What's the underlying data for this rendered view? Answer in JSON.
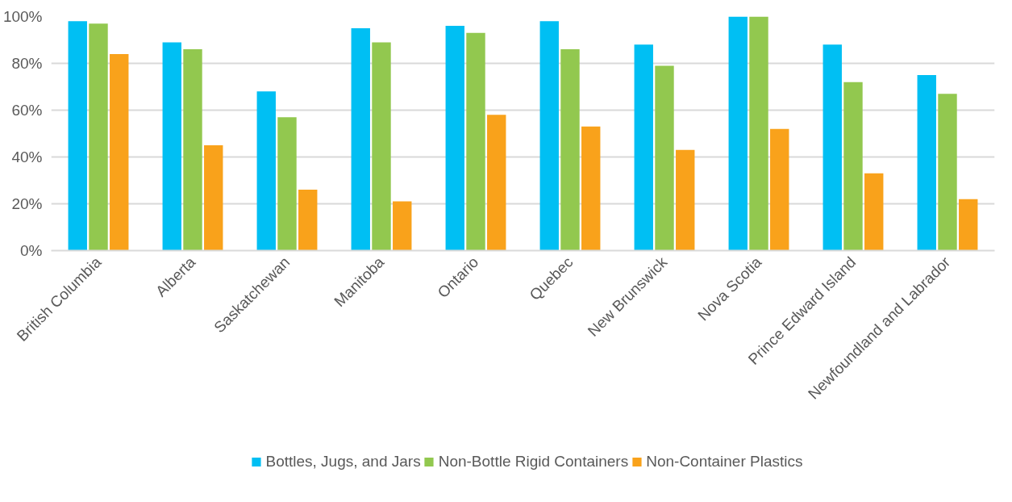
{
  "chart_data": {
    "type": "bar",
    "categories": [
      "British Columbia",
      "Alberta",
      "Saskatchewan",
      "Manitoba",
      "Ontario",
      "Quebec",
      "New Brunswick",
      "Nova Scotia",
      "Prince Edward Island",
      "Newfoundland and Labrador"
    ],
    "series": [
      {
        "name": "Bottles, Jugs, and Jars",
        "color": "#00bff3",
        "values": [
          98,
          89,
          68,
          95,
          96,
          98,
          88,
          100,
          88,
          75
        ]
      },
      {
        "name": "Non-Bottle Rigid Containers",
        "color": "#92c84f",
        "values": [
          97,
          86,
          57,
          89,
          93,
          86,
          79,
          100,
          72,
          67
        ]
      },
      {
        "name": "Non-Container Plastics",
        "color": "#f9a21b",
        "values": [
          84,
          45,
          26,
          21,
          58,
          53,
          43,
          52,
          33,
          22
        ]
      }
    ],
    "ylim": [
      0,
      100
    ],
    "yticks": [
      {
        "value": 0,
        "label": "0%"
      },
      {
        "value": 20,
        "label": "20%"
      },
      {
        "value": 40,
        "label": "40%"
      },
      {
        "value": 60,
        "label": "60%"
      },
      {
        "value": 80,
        "label": "80%"
      },
      {
        "value": 100,
        "label": "100%"
      }
    ],
    "grid": "y",
    "legend": "bottom"
  }
}
